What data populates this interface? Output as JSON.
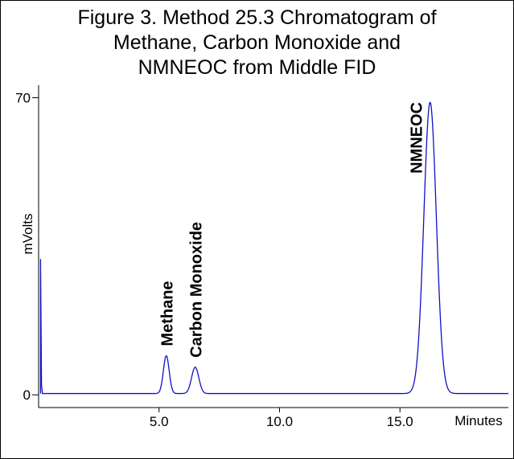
{
  "chart_data": {
    "type": "line",
    "title": [
      "Figure 3. Method 25.3 Chromatogram of",
      "Methane, Carbon Monoxide and",
      "NMNEOC from Middle FID"
    ],
    "xlabel": "Minutes",
    "ylabel": "mVolts",
    "xlim": [
      0,
      19.5
    ],
    "ylim": [
      -3,
      72
    ],
    "x_ticks": [
      {
        "value": 5.0,
        "label": "5.0"
      },
      {
        "value": 10.0,
        "label": "10.0"
      },
      {
        "value": 15.0,
        "label": "15.0"
      }
    ],
    "y_ticks": [
      {
        "value": 0,
        "label": "0"
      },
      {
        "value": 70,
        "label": "70"
      }
    ],
    "line_color": "#1010c8",
    "baseline": 0.3,
    "peaks": [
      {
        "label": "Methane",
        "time": 5.3,
        "height": 8.9,
        "width": 0.12
      },
      {
        "label": "Carbon Monoxide",
        "time": 6.5,
        "height": 6.2,
        "width": 0.15
      },
      {
        "label": "NMNEOC",
        "time": 16.25,
        "height": 68.6,
        "width": 0.26
      }
    ],
    "injection_spike": {
      "time": 0.08,
      "height": 32.0
    }
  }
}
